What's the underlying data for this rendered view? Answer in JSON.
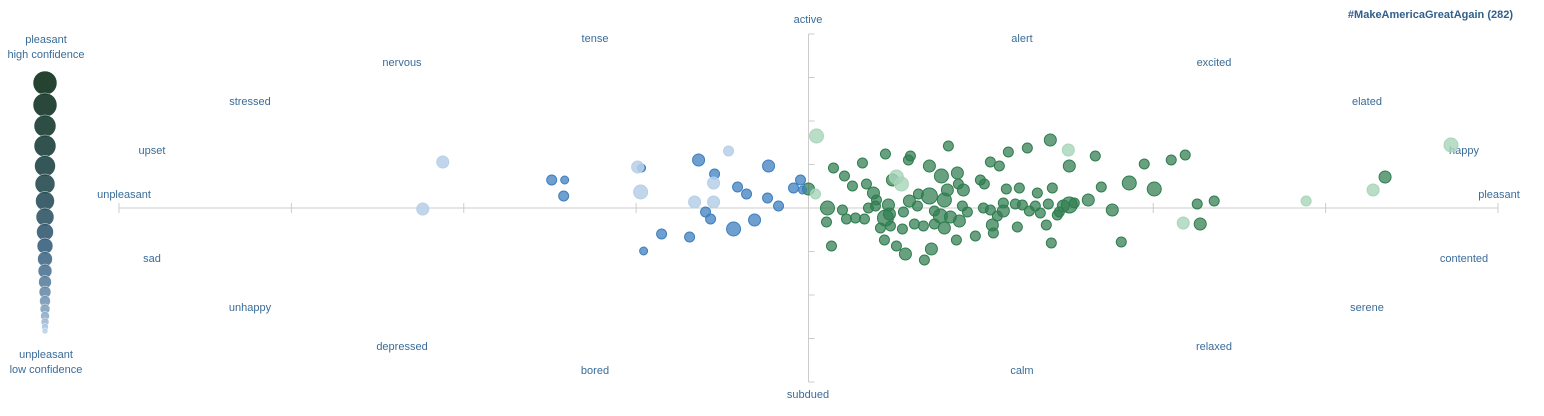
{
  "chart_data": {
    "type": "scatter",
    "title": "#MakeAmericaGreatAgain (282)",
    "legend": {
      "top": [
        "pleasant",
        "high confidence"
      ],
      "bottom": [
        "unpleasant",
        "low confidence"
      ]
    },
    "mood_labels": [
      "active",
      "tense",
      "alert",
      "nervous",
      "excited",
      "stressed",
      "elated",
      "upset",
      "happy",
      "unpleasant",
      "pleasant",
      "sad",
      "contented",
      "unhappy",
      "serene",
      "depressed",
      "relaxed",
      "bored",
      "calm",
      "subdued"
    ],
    "xlim": [
      -690,
      690
    ],
    "ylim": [
      -174,
      174
    ],
    "xticks": [
      -690,
      -517.5,
      -345,
      -172.5,
      0,
      172.5,
      345,
      517.5,
      690
    ],
    "yticks": [
      -174,
      -130.5,
      -87,
      -43.5,
      0,
      43.5,
      87,
      130.5,
      174
    ],
    "axis_color": "#cccccc",
    "series": [
      {
        "color": "#2f7d4f",
        "opacity": 0.72,
        "x": [
          0,
          25,
          36,
          44,
          54,
          58,
          65,
          77,
          84,
          102,
          121,
          140,
          133,
          149,
          155,
          150,
          172,
          176,
          182,
          191,
          200,
          219,
          242,
          261,
          287,
          293,
          321,
          336,
          346,
          363,
          377,
          229,
          244,
          198,
          211,
          110,
          121,
          136,
          139,
          101,
          80,
          67,
          60,
          56,
          19,
          34,
          38,
          18,
          23,
          72,
          77,
          81,
          95,
          109,
          126,
          132,
          142,
          154,
          159,
          175,
          182,
          189,
          195,
          207,
          214,
          221,
          227,
          240,
          251,
          255,
          261,
          266,
          280,
          304,
          249,
          232,
          209,
          195,
          184,
          185,
          167,
          148,
          151,
          136,
          126,
          115,
          106,
          94,
          82,
          76,
          88,
          97,
          116,
          123,
          243,
          238,
          313,
          392,
          389,
          406,
          577,
          100,
          47,
          68
        ],
        "y": [
          19,
          40,
          32,
          22,
          45,
          24,
          15,
          54,
          28,
          52,
          42,
          62,
          32,
          35,
          18,
          24,
          28,
          24,
          46,
          42,
          56,
          60,
          68,
          42,
          52,
          21,
          25,
          44,
          19,
          48,
          53,
          15,
          20,
          19,
          20,
          14,
          12,
          8,
          18,
          7,
          3,
          2,
          0,
          -11,
          0,
          -2,
          -11,
          -14,
          -38,
          -20,
          -10,
          -6,
          -4,
          2,
          -3,
          -8,
          -9,
          2,
          -4,
          0,
          -2,
          -8,
          5,
          4,
          3,
          -3,
          2,
          4,
          -4,
          2,
          3,
          5,
          8,
          -2,
          -7,
          -5,
          -19,
          -3,
          -17,
          -25,
          -28,
          -32,
          -13,
          -20,
          -16,
          -18,
          -16,
          -21,
          -18,
          -32,
          -38,
          -46,
          -52,
          -41,
          -35,
          -17,
          -34,
          -16,
          4,
          7,
          31,
          48,
          -10,
          8
        ],
        "sizes": [
          6,
          5,
          5,
          5,
          5,
          5,
          6,
          5,
          6,
          5,
          6,
          5,
          7,
          6,
          6,
          5,
          5,
          5,
          5,
          5,
          5,
          5,
          6,
          6,
          5,
          5,
          7,
          5,
          7,
          5,
          5,
          5,
          5,
          5,
          5,
          5,
          8,
          7,
          6,
          6,
          6,
          5,
          5,
          5,
          7,
          5,
          5,
          5,
          5,
          5,
          8,
          6,
          5,
          5,
          5,
          7,
          6,
          5,
          5,
          5,
          5,
          5,
          5,
          5,
          5,
          5,
          5,
          5,
          5,
          6,
          8,
          5,
          6,
          6,
          5,
          5,
          5,
          6,
          6,
          5,
          5,
          5,
          6,
          6,
          5,
          5,
          5,
          5,
          5,
          5,
          5,
          6,
          5,
          6,
          5,
          5,
          5,
          6,
          5,
          5,
          6,
          5,
          5,
          5
        ]
      },
      {
        "color": "#a8d5b9",
        "opacity": 0.8,
        "x": [
          8,
          7,
          88,
          93,
          260,
          375,
          498,
          565,
          643
        ],
        "y": [
          72,
          14,
          31,
          24,
          58,
          -15,
          7,
          18,
          63
        ],
        "sizes": [
          7,
          5,
          7,
          7,
          6,
          6,
          5,
          6,
          7
        ]
      },
      {
        "color": "#3d7fbf",
        "opacity": 0.75,
        "x": [
          -257,
          -244,
          -245,
          -167,
          -110,
          -94,
          -71,
          -62,
          -40,
          -41,
          -54,
          -30,
          -103,
          -98,
          -75,
          -147,
          -119,
          -165,
          -8,
          -15,
          -6
        ],
        "y": [
          28,
          28,
          12,
          40,
          48,
          34,
          21,
          14,
          42,
          10,
          -12,
          2,
          -4,
          -11,
          -21,
          -26,
          -29,
          -43,
          28,
          20,
          18
        ],
        "sizes": [
          5,
          4,
          5,
          4,
          6,
          5,
          5,
          5,
          6,
          5,
          6,
          5,
          5,
          5,
          7,
          5,
          5,
          4,
          5,
          5,
          4
        ]
      },
      {
        "color": "#b7cfe8",
        "opacity": 0.85,
        "x": [
          -366,
          -386,
          -171,
          -168,
          -80,
          -95,
          -114,
          -95
        ],
        "y": [
          46,
          -1,
          41,
          16,
          57,
          25,
          6,
          6
        ],
        "sizes": [
          6,
          6,
          6,
          7,
          5,
          6,
          6,
          6
        ]
      }
    ]
  }
}
